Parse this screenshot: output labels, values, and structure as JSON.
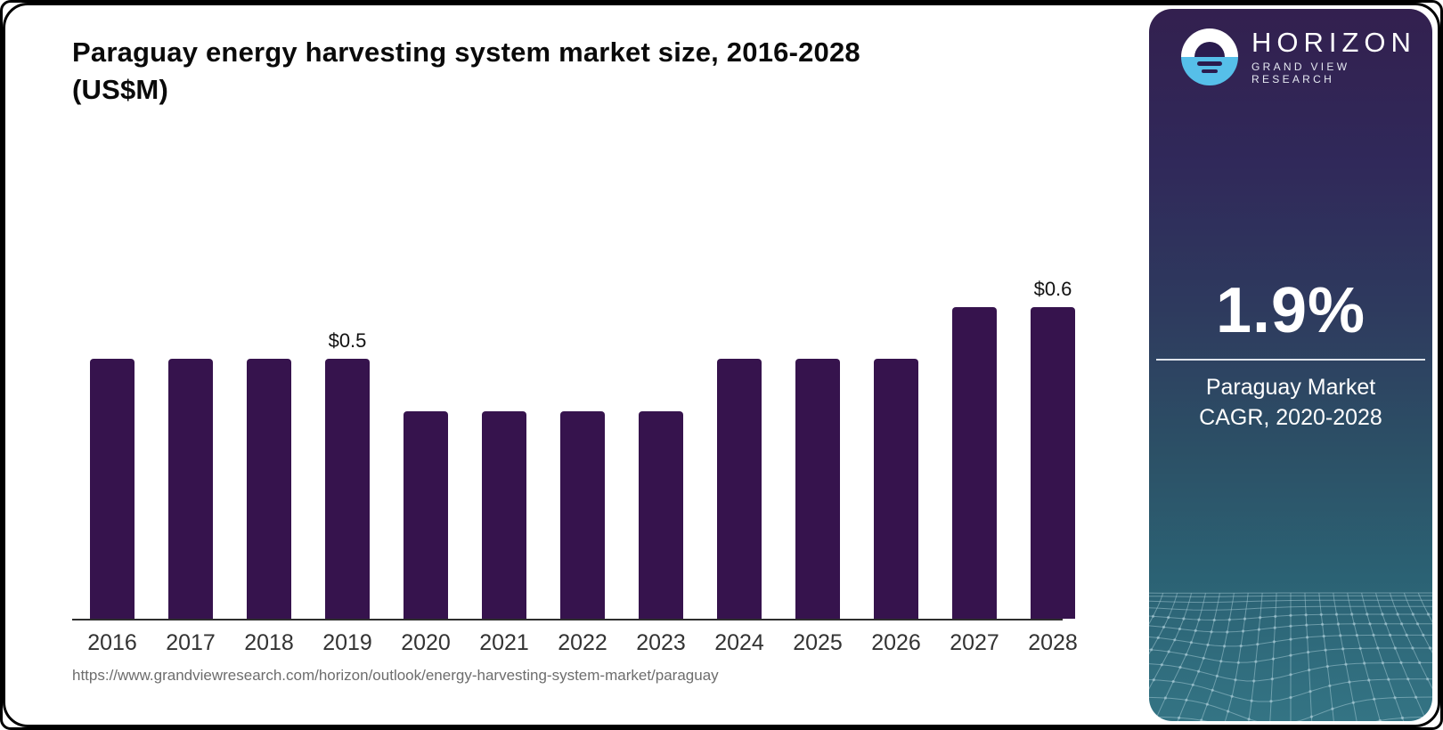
{
  "card": {
    "title": "Paraguay energy harvesting system market size, 2016-2028 (US$M)",
    "title_lines": [
      "Paraguay energy harvesting system market size, 2016-2028",
      "(US$M)"
    ],
    "source_url": "https://www.grandviewresearch.com/horizon/outlook/energy-harvesting-system-market/paraguay"
  },
  "chart_data": {
    "type": "bar",
    "title": "Paraguay energy harvesting system market size, 2016-2028 (US$M)",
    "unit": "US$M",
    "categories": [
      "2016",
      "2017",
      "2018",
      "2019",
      "2020",
      "2021",
      "2022",
      "2023",
      "2024",
      "2025",
      "2026",
      "2027",
      "2028"
    ],
    "values": [
      0.5,
      0.5,
      0.5,
      0.5,
      0.4,
      0.4,
      0.4,
      0.4,
      0.5,
      0.5,
      0.5,
      0.6,
      0.6
    ],
    "data_labels": [
      "",
      "",
      "",
      "$0.5",
      "",
      "",
      "",
      "",
      "",
      "",
      "",
      "",
      "$0.6"
    ],
    "xlabel": "",
    "ylabel": "",
    "ylim": [
      0,
      0.6
    ],
    "grid": "off",
    "legend": "none",
    "bar_color": "#36134d",
    "axis_color": "#2e2e2e"
  },
  "sidebar": {
    "brand": {
      "name": "HORIZON",
      "tagline": "GRAND VIEW RESEARCH",
      "logo_icon": "sunrise-circle-icon"
    },
    "stat": {
      "value": "1.9%",
      "caption_line1": "Paraguay Market",
      "caption_line2": "CAGR, 2020-2028"
    },
    "colors": {
      "accent_blue": "#56bfe9",
      "gradient_top": "#33204f",
      "gradient_bottom": "#347484",
      "logo_navy": "#2a1c4e"
    }
  }
}
